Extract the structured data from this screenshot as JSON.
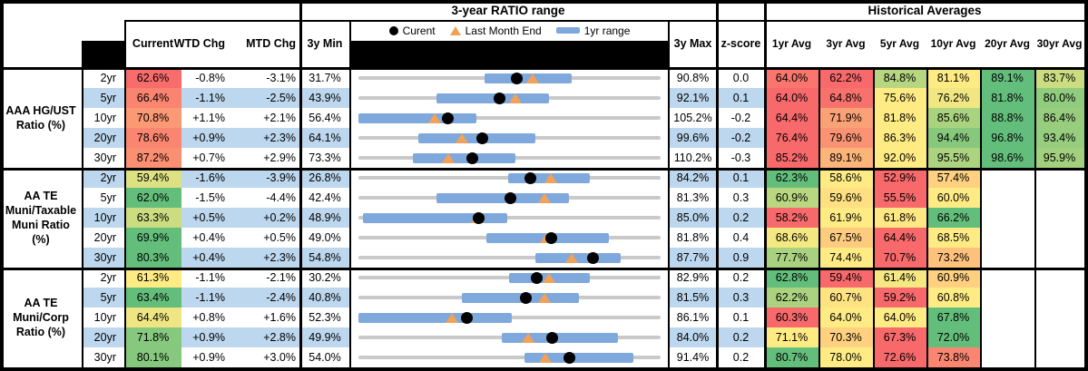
{
  "titles": {
    "chart_section": "3-year RATIO range",
    "hist_section": "Historical Averages"
  },
  "legend": {
    "current": "Curent",
    "last_month": "Last Month End",
    "range": "1yr range"
  },
  "columns": {
    "current": "Current",
    "wtd": "WTD Chg",
    "mtd": "MTD Chg",
    "min": "3y Min",
    "max": "3y Max",
    "z": "z-score",
    "avgs": [
      "1yr Avg",
      "3yr Avg",
      "5yr Avg",
      "10yr Avg",
      "20yr Avg",
      "30yr Avg"
    ]
  },
  "colors": {
    "band_blue": "#BDD7EE",
    "scale_red": "#F8696B",
    "scale_yellow": "#FFEB84",
    "scale_green": "#63BE7B",
    "range_bar_blue": "#7FA9DC",
    "range_line_gray": "#C9C9C9",
    "marker_orange": "#F2A159",
    "marker_black": "#000000"
  },
  "chart_data": {
    "type": "table",
    "description": "Municipal bond ratio dashboard: current ratio, WTD/MTD change, 3-year min/max with 1yr range bar (current dot, last-month-end triangle), z-score and historical averages, all in %.",
    "groups": [
      {
        "label": "AAA HG/UST Ratio (%)",
        "rows": [
          {
            "tenor": "2yr",
            "current": 62.6,
            "wtd_chg": -0.8,
            "mtd_chg": -3.1,
            "y3_min": 31.7,
            "y3_max": 90.8,
            "z_score": 0.0,
            "last_month_end": 65.7,
            "range_1yr": [
              56.4,
              73.4
            ],
            "avgs": [
              64.0,
              62.2,
              84.8,
              81.1,
              89.1,
              83.7
            ]
          },
          {
            "tenor": "5yr",
            "current": 66.4,
            "wtd_chg": -1.1,
            "mtd_chg": -2.5,
            "y3_min": 43.9,
            "y3_max": 92.1,
            "z_score": 0.1,
            "last_month_end": 68.9,
            "range_1yr": [
              56.3,
              74.3
            ],
            "avgs": [
              64.0,
              64.8,
              75.6,
              76.2,
              81.8,
              80.0
            ]
          },
          {
            "tenor": "10yr",
            "current": 70.8,
            "wtd_chg": 1.1,
            "mtd_chg": 2.1,
            "y3_min": 56.4,
            "y3_max": 105.2,
            "z_score": -0.2,
            "last_month_end": 68.7,
            "range_1yr": [
              56.4,
              75.5
            ],
            "avgs": [
              64.4,
              71.9,
              81.8,
              85.6,
              88.8,
              86.4
            ]
          },
          {
            "tenor": "20yr",
            "current": 78.6,
            "wtd_chg": 0.9,
            "mtd_chg": 2.3,
            "y3_min": 64.1,
            "y3_max": 99.6,
            "z_score": -0.2,
            "last_month_end": 76.3,
            "range_1yr": [
              71.1,
              84.9
            ],
            "avgs": [
              76.4,
              79.6,
              86.3,
              94.4,
              96.8,
              93.4
            ]
          },
          {
            "tenor": "30yr",
            "current": 87.2,
            "wtd_chg": 0.7,
            "mtd_chg": 2.9,
            "y3_min": 73.3,
            "y3_max": 110.2,
            "z_score": -0.3,
            "last_month_end": 84.3,
            "range_1yr": [
              79.9,
              92.5
            ],
            "avgs": [
              85.2,
              89.1,
              92.0,
              95.5,
              98.6,
              95.9
            ]
          }
        ]
      },
      {
        "label": "AA TE Muni/Taxable Muni Ratio (%)",
        "rows": [
          {
            "tenor": "2yr",
            "current": 59.4,
            "wtd_chg": -1.6,
            "mtd_chg": -3.9,
            "y3_min": 26.8,
            "y3_max": 84.2,
            "z_score": 0.1,
            "last_month_end": 63.3,
            "range_1yr": [
              55.2,
              70.8
            ],
            "avgs": [
              62.3,
              58.6,
              52.9,
              57.4,
              null,
              null
            ]
          },
          {
            "tenor": "5yr",
            "current": 62.0,
            "wtd_chg": -1.5,
            "mtd_chg": -4.4,
            "y3_min": 42.4,
            "y3_max": 81.3,
            "z_score": 0.3,
            "last_month_end": 66.4,
            "range_1yr": [
              52.5,
              69.5
            ],
            "avgs": [
              60.9,
              59.6,
              55.5,
              60.0,
              null,
              null
            ]
          },
          {
            "tenor": "10yr",
            "current": 63.3,
            "wtd_chg": 0.5,
            "mtd_chg": 0.2,
            "y3_min": 48.9,
            "y3_max": 85.0,
            "z_score": 0.2,
            "last_month_end": 63.1,
            "range_1yr": [
              49.4,
              66.7
            ],
            "avgs": [
              58.2,
              61.9,
              61.8,
              66.2,
              null,
              null
            ]
          },
          {
            "tenor": "20yr",
            "current": 69.9,
            "wtd_chg": 0.4,
            "mtd_chg": 0.5,
            "y3_min": 49.0,
            "y3_max": 81.8,
            "z_score": 0.4,
            "last_month_end": 69.4,
            "range_1yr": [
              62.9,
              76.2
            ],
            "avgs": [
              68.6,
              67.5,
              64.4,
              68.5,
              null,
              null
            ]
          },
          {
            "tenor": "30yr",
            "current": 80.3,
            "wtd_chg": 0.4,
            "mtd_chg": 2.3,
            "y3_min": 54.8,
            "y3_max": 87.7,
            "z_score": 0.9,
            "last_month_end": 78.0,
            "range_1yr": [
              74.1,
              83.4
            ],
            "avgs": [
              77.7,
              74.4,
              70.7,
              73.2,
              null,
              null
            ]
          }
        ]
      },
      {
        "label": "AA TE Muni/Corp Ratio (%)",
        "rows": [
          {
            "tenor": "2yr",
            "current": 61.3,
            "wtd_chg": -1.1,
            "mtd_chg": -2.1,
            "y3_min": 30.2,
            "y3_max": 82.9,
            "z_score": 0.2,
            "last_month_end": 63.4,
            "range_1yr": [
              56.4,
              70.6
            ],
            "avgs": [
              62.8,
              59.4,
              61.4,
              60.9,
              null,
              null
            ]
          },
          {
            "tenor": "5yr",
            "current": 63.4,
            "wtd_chg": -1.1,
            "mtd_chg": -2.4,
            "y3_min": 40.8,
            "y3_max": 81.5,
            "z_score": 0.3,
            "last_month_end": 65.8,
            "range_1yr": [
              54.7,
              70.5
            ],
            "avgs": [
              62.2,
              60.7,
              59.2,
              60.8,
              null,
              null
            ]
          },
          {
            "tenor": "10yr",
            "current": 64.4,
            "wtd_chg": 0.8,
            "mtd_chg": 1.6,
            "y3_min": 52.3,
            "y3_max": 86.1,
            "z_score": 0.1,
            "last_month_end": 62.8,
            "range_1yr": [
              52.3,
              69.5
            ],
            "avgs": [
              60.3,
              64.0,
              64.0,
              67.8,
              null,
              null
            ]
          },
          {
            "tenor": "20yr",
            "current": 71.8,
            "wtd_chg": 0.9,
            "mtd_chg": 2.8,
            "y3_min": 49.9,
            "y3_max": 84.0,
            "z_score": 0.2,
            "last_month_end": 69.0,
            "range_1yr": [
              66.1,
              79.2
            ],
            "avgs": [
              71.1,
              70.3,
              67.3,
              72.0,
              null,
              null
            ]
          },
          {
            "tenor": "30yr",
            "current": 80.1,
            "wtd_chg": 0.9,
            "mtd_chg": 3.0,
            "y3_min": 54.0,
            "y3_max": 91.4,
            "z_score": 0.2,
            "last_month_end": 77.1,
            "range_1yr": [
              74.6,
              88.0
            ],
            "avgs": [
              80.7,
              78.0,
              72.6,
              73.8,
              null,
              null
            ]
          }
        ]
      }
    ]
  }
}
